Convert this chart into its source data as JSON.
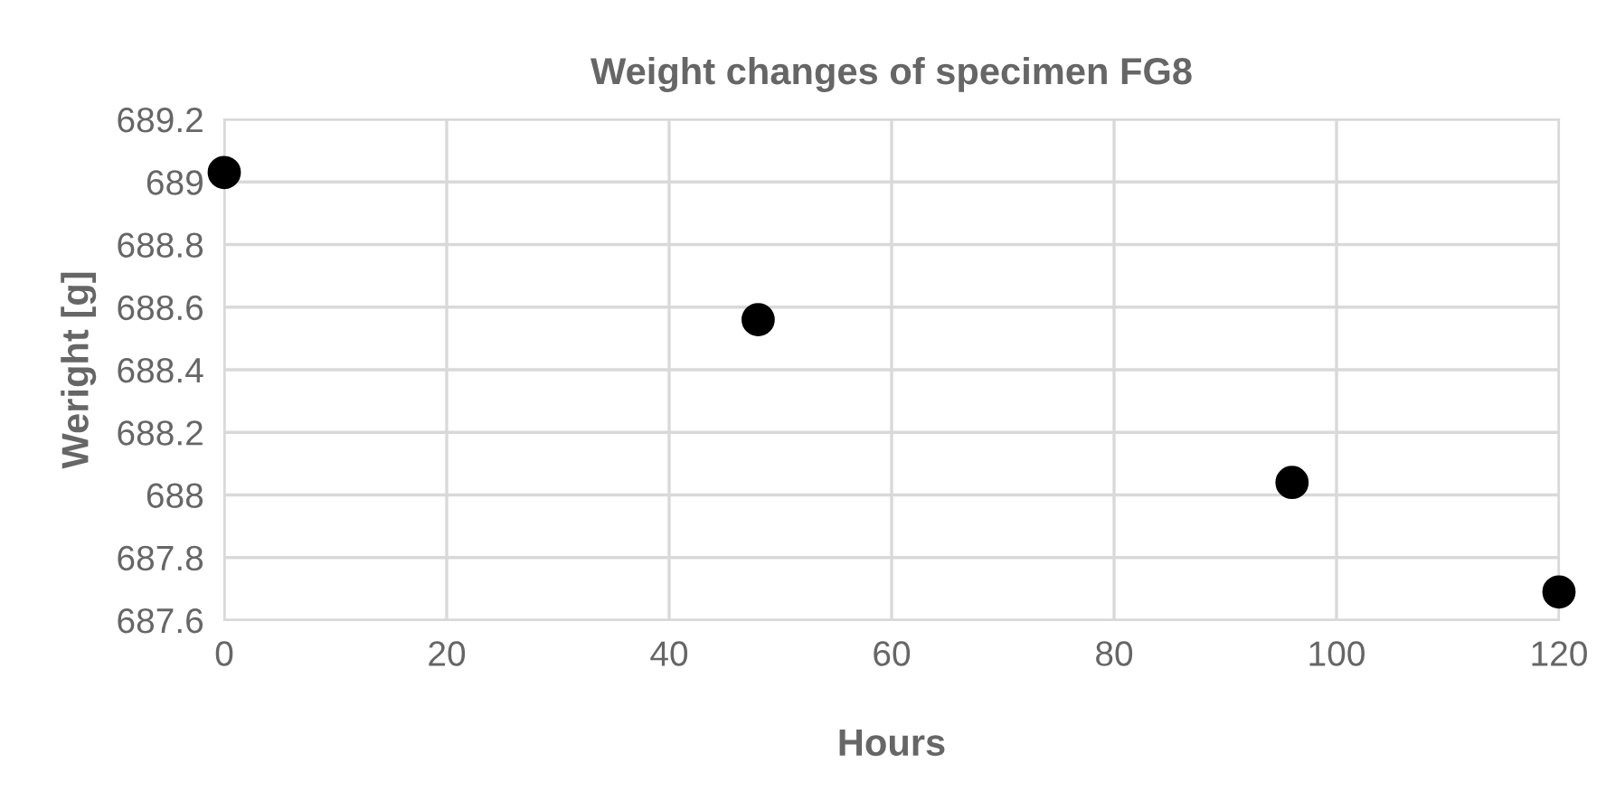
{
  "chart_data": {
    "type": "scatter",
    "title": "Weight changes of specimen FG8",
    "xlabel": "Hours",
    "ylabel": "Weright [g]",
    "x": [
      0,
      48,
      96,
      120
    ],
    "series": [
      {
        "color": "#000000",
        "values": [
          689.03,
          688.56,
          688.04,
          687.69
        ]
      }
    ],
    "xlim": [
      0,
      120
    ],
    "xticks": [
      0,
      20,
      40,
      60,
      80,
      100,
      120
    ],
    "ylim": [
      687.6,
      689.2
    ],
    "yticks": [
      687.6,
      687.8,
      688,
      688.2,
      688.4,
      688.6,
      688.8,
      689,
      689.2
    ],
    "grid": true,
    "marker": "circle"
  }
}
